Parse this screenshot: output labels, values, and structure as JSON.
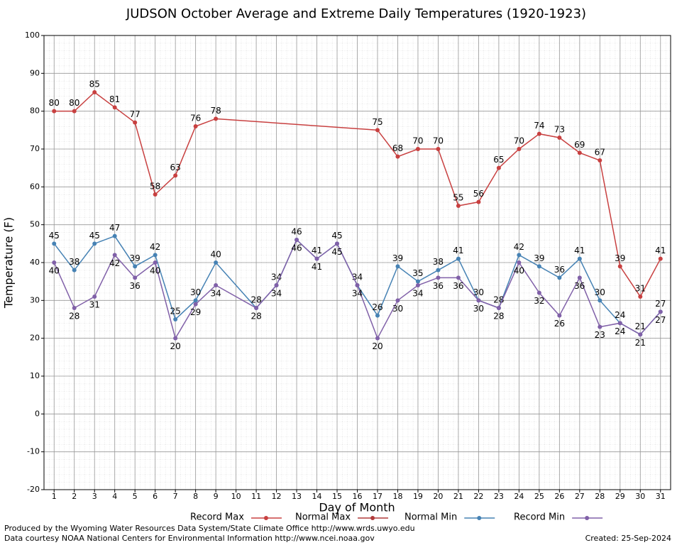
{
  "chart_data": {
    "type": "line",
    "title": "JUDSON October Average and Extreme Daily Temperatures (1920-1923)",
    "x_label": "Day of Month",
    "y_label": "Temperature (F)",
    "xlim": [
      0.5,
      31.5
    ],
    "xticks": [
      1,
      2,
      3,
      4,
      5,
      6,
      7,
      8,
      9,
      10,
      11,
      12,
      13,
      14,
      15,
      16,
      17,
      18,
      19,
      20,
      21,
      22,
      23,
      24,
      25,
      26,
      27,
      28,
      29,
      30,
      31
    ],
    "ylim": [
      -20,
      100
    ],
    "yticks": [
      -20,
      -10,
      0,
      10,
      20,
      30,
      40,
      50,
      60,
      70,
      80,
      90,
      100
    ],
    "grid": true,
    "legend": "bottom",
    "series": [
      {
        "name": "Record Max",
        "color": "#c84040",
        "label_side": "above",
        "x": [
          1,
          2,
          3,
          4,
          5,
          6,
          7,
          8,
          9,
          17,
          18,
          19,
          20,
          21,
          22,
          23,
          24,
          25,
          26,
          27,
          28,
          29,
          30,
          31
        ],
        "values": [
          80,
          80,
          85,
          81,
          77,
          58,
          63,
          76,
          78,
          75,
          68,
          70,
          70,
          55,
          56,
          65,
          70,
          74,
          73,
          69,
          67,
          39,
          31,
          41
        ]
      },
      {
        "name": "Normal Max",
        "color": "#b03a3a",
        "label_side": "above",
        "x": [],
        "values": []
      },
      {
        "name": "Normal Min",
        "color": "#4682b4",
        "label_side": "above",
        "x": [
          1,
          2,
          3,
          4,
          5,
          6,
          7,
          8,
          9,
          11,
          12,
          13,
          14,
          15,
          16,
          17,
          18,
          19,
          20,
          21,
          22,
          23,
          24,
          25,
          26,
          27,
          28,
          29,
          30,
          31
        ],
        "values": [
          45,
          38,
          45,
          47,
          39,
          42,
          25,
          30,
          40,
          28,
          34,
          46,
          41,
          45,
          34,
          26,
          39,
          35,
          38,
          41,
          30,
          28,
          42,
          39,
          36,
          41,
          30,
          24,
          21,
          27
        ]
      },
      {
        "name": "Record Min",
        "color": "#8060a8",
        "label_side": "below",
        "x": [
          1,
          2,
          3,
          4,
          5,
          6,
          7,
          8,
          9,
          11,
          12,
          13,
          14,
          15,
          16,
          17,
          18,
          19,
          20,
          21,
          22,
          23,
          24,
          25,
          26,
          27,
          28,
          29,
          30,
          31
        ],
        "values": [
          40,
          28,
          31,
          42,
          36,
          40,
          20,
          29,
          34,
          28,
          34,
          46,
          41,
          45,
          34,
          20,
          30,
          34,
          36,
          36,
          30,
          28,
          40,
          32,
          26,
          36,
          23,
          24,
          21,
          27
        ]
      }
    ],
    "footer_left": [
      "Produced by the Wyoming Water Resources Data System/State Climate Office http://www.wrds.uwyo.edu",
      "Data courtesy NOAA National Centers for Environmental Information http://www.ncei.noaa.gov"
    ],
    "footer_right": "Created:  25-Sep-2024"
  }
}
